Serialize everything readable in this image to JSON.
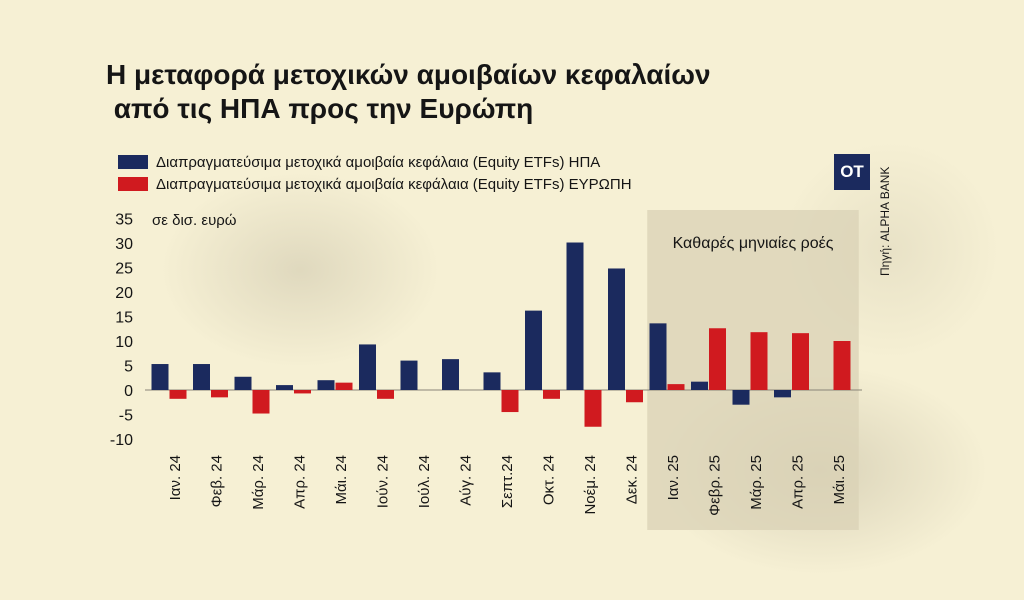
{
  "title": {
    "line1": "Η μεταφορά μετοχικών αμοιβαίων κεφαλαίων",
    "line2": " από τις ΗΠΑ προς την Ευρώπη"
  },
  "logo": {
    "text": "OT"
  },
  "source": "Πηγή: ALPHA BANK",
  "colors": {
    "usa": "#1b2a5e",
    "europe": "#d01a1f",
    "highlight": "#d9d2b6"
  },
  "chart_data": {
    "type": "bar",
    "unit_label": "σε δισ. ευρώ",
    "annotation": "Καθαρές μηνιαίες ροές",
    "ylim": [
      -10,
      35
    ],
    "yticks": [
      35,
      30,
      25,
      20,
      15,
      10,
      5,
      0,
      -5,
      -10
    ],
    "grid": false,
    "legend_position": "top-left",
    "categories": [
      "Ιαν. 24",
      "Φεβ. 24",
      "Μάρ. 24",
      "Απρ. 24",
      "Μάι. 24",
      "Ιούν. 24",
      "Ιούλ. 24",
      "Αύγ. 24",
      "Σεπτ.24",
      "Οκτ. 24",
      "Νοέμ. 24",
      "Δεκ. 24",
      "Ιαν. 25",
      "Φεβρ. 25",
      "Μάρ. 25",
      "Απρ. 25",
      "Μάι. 25"
    ],
    "highlight_categories": [
      "Ιαν. 25",
      "Φεβρ. 25",
      "Μάρ. 25",
      "Απρ. 25",
      "Μάι. 25"
    ],
    "series": [
      {
        "name": "Διαπραγματεύσιμα μετοχικά αμοιβαία κεφάλαια (Equity ETFs) ΗΠΑ",
        "values": [
          5.3,
          5.3,
          2.7,
          1,
          2,
          9.3,
          6,
          6.3,
          3.6,
          16.2,
          30.1,
          24.8,
          13.6,
          1.7,
          -3,
          -1.5,
          null
        ]
      },
      {
        "name": "Διαπραγματεύσιμα μετοχικά αμοιβαία κεφάλαια (Equity ETFs) ΕΥΡΩΠΗ",
        "values": [
          -1.8,
          -1.5,
          -4.8,
          -0.7,
          1.5,
          -1.8,
          null,
          null,
          -4.5,
          -1.8,
          -7.5,
          -2.5,
          1.2,
          12.6,
          11.8,
          11.6,
          10
        ]
      }
    ]
  }
}
